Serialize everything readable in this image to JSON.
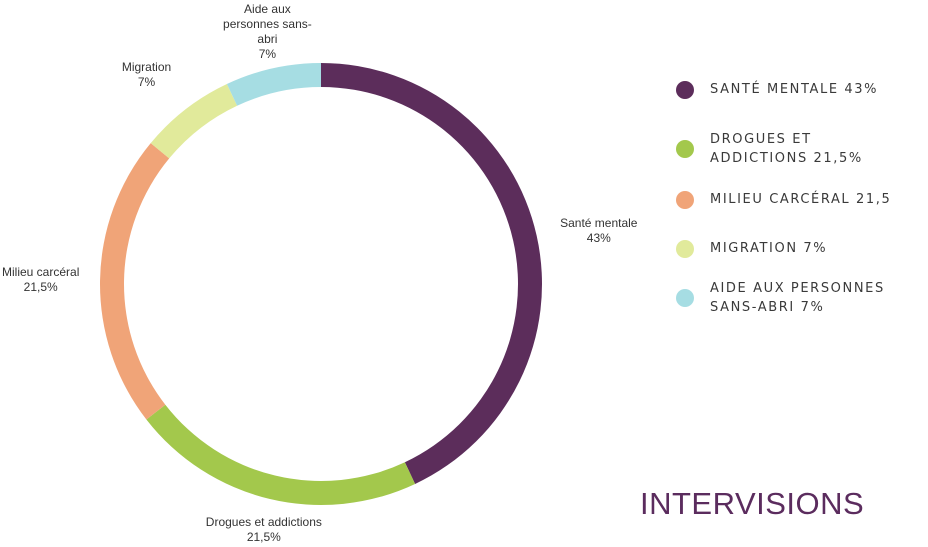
{
  "chart_data": {
    "type": "pie",
    "title": "",
    "slices": [
      {
        "name": "Santé mentale",
        "value": 43,
        "value_label": "43%",
        "color": "#5c2d5b",
        "label_lines": [
          "Santé mentale",
          "43%"
        ],
        "legend_text": "SANTÉ MENTALE 43%"
      },
      {
        "name": "Drogues et addictions",
        "value": 21.5,
        "value_label": "21,5%",
        "color": "#a3c84c",
        "label_lines": [
          "Drogues et addictions",
          "21,5%"
        ],
        "legend_text": "DROGUES ET\nADDICTIONS 21,5%"
      },
      {
        "name": "Milieu carcéral",
        "value": 21.5,
        "value_label": "21,5%",
        "color": "#f0a478",
        "label_lines": [
          "Milieu carcéral",
          "21,5%"
        ],
        "legend_text": "MILIEU CARCÉRAL 21,5"
      },
      {
        "name": "Migration",
        "value": 7,
        "value_label": "7%",
        "color": "#e1ea9b",
        "label_lines": [
          "Migration",
          "7%"
        ],
        "legend_text": "MIGRATION 7%"
      },
      {
        "name": "Aide aux personnes sans-abri",
        "value": 7,
        "value_label": "7%",
        "color": "#a6dde3",
        "label_lines": [
          "Aide aux",
          "personnes sans-",
          "abri",
          "7%"
        ],
        "legend_text": "AIDE AUX PERSONNES\nSANS-ABRI 7%"
      }
    ],
    "legend_position": "right"
  },
  "brand": "INTERVISIONS"
}
